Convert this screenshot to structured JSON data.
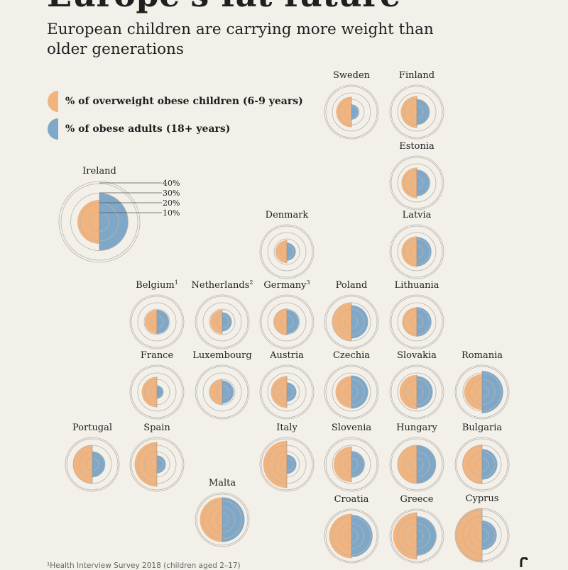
{
  "header": {
    "title": "Europe's fat future",
    "subtitle": "European children are carrying more weight than older generations"
  },
  "legend": {
    "children_label": "% of overweight obese children (6-9 years)",
    "adults_label": "% of obese adults (18+ years)"
  },
  "colors": {
    "children": "#f2b47f",
    "adults": "#7fa8c8",
    "ring": "#b9b4ac",
    "background": "#f3f0ea"
  },
  "ring_scale": {
    "labels": [
      "40%",
      "30%",
      "20%",
      "10%"
    ]
  },
  "footnote": "¹Health Interview Survey 2018 (children aged 2–17)",
  "chart_data": {
    "type": "half-circle proportional grid",
    "unit": "%",
    "ring_values": [
      10,
      20,
      30,
      40
    ],
    "series": [
      {
        "name": "% of overweight obese children (6-9 years)"
      },
      {
        "name": "% of obese adults (18+ years)"
      }
    ],
    "countries": [
      {
        "name": "Sweden",
        "children": 24,
        "adults": 12
      },
      {
        "name": "Finland",
        "children": 25,
        "adults": 20
      },
      {
        "name": "Estonia",
        "children": 24,
        "adults": 21
      },
      {
        "name": "Ireland",
        "children": 23,
        "adults": 30
      },
      {
        "name": "Denmark",
        "children": 18,
        "adults": 14
      },
      {
        "name": "Latvia",
        "children": 24,
        "adults": 23
      },
      {
        "name": "Belgium",
        "sup": "1",
        "children": 19,
        "adults": 19
      },
      {
        "name": "Netherlands",
        "sup": "2",
        "children": 19,
        "adults": 15
      },
      {
        "name": "Germany",
        "sup": "3",
        "children": 21,
        "adults": 19
      },
      {
        "name": "Poland",
        "children": 30,
        "adults": 26
      },
      {
        "name": "Lithuania",
        "children": 23,
        "adults": 23
      },
      {
        "name": "France",
        "children": 24,
        "adults": 10
      },
      {
        "name": "Luxembourg",
        "children": 20,
        "adults": 18
      },
      {
        "name": "Austria",
        "children": 25,
        "adults": 15
      },
      {
        "name": "Czechia",
        "children": 25,
        "adults": 26
      },
      {
        "name": "Slovakia",
        "children": 27,
        "adults": 25
      },
      {
        "name": "Romania",
        "children": 28,
        "adults": 33
      },
      {
        "name": "Portugal",
        "children": 30,
        "adults": 20
      },
      {
        "name": "Spain",
        "children": 35,
        "adults": 14
      },
      {
        "name": "Italy",
        "children": 37,
        "adults": 15
      },
      {
        "name": "Slovenia",
        "children": 28,
        "adults": 21
      },
      {
        "name": "Hungary",
        "children": 30,
        "adults": 30
      },
      {
        "name": "Bulgaria",
        "children": 31,
        "adults": 24
      },
      {
        "name": "Malta",
        "children": 35,
        "adults": 35
      },
      {
        "name": "Croatia",
        "children": 35,
        "adults": 33
      },
      {
        "name": "Greece",
        "children": 37,
        "adults": 31
      },
      {
        "name": "Cyprus",
        "children": 42,
        "adults": 23
      }
    ]
  }
}
